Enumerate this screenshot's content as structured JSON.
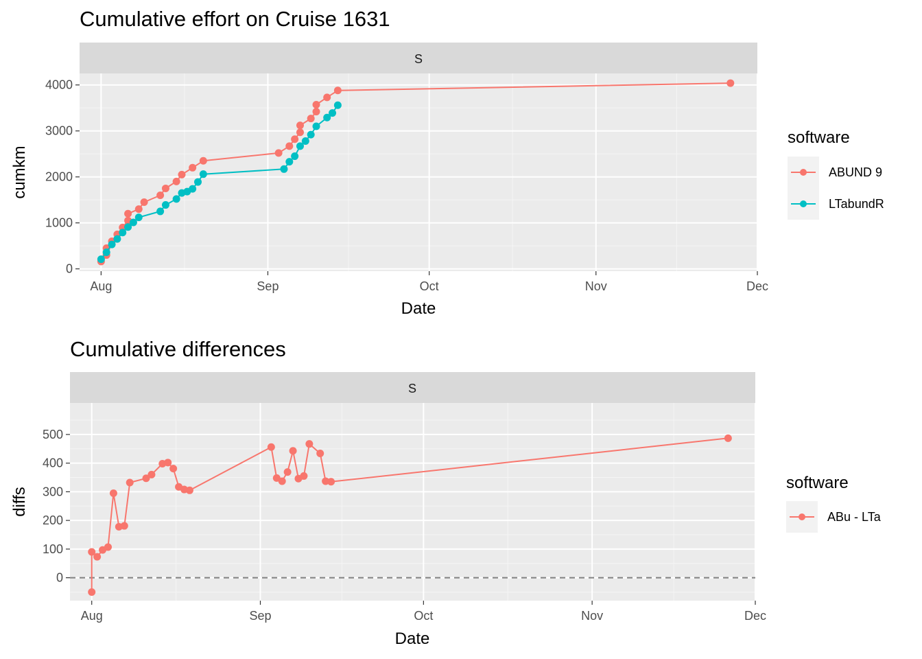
{
  "chart_data": [
    {
      "type": "line",
      "title": "Cumulative effort on Cruise 1631",
      "facet": "S",
      "xlabel": "Date",
      "ylabel": "cumkm",
      "x_type": "date",
      "xlim": [
        "2016-07-28",
        "2016-12-01"
      ],
      "ylim": [
        -50,
        4250
      ],
      "x_ticks": [
        {
          "date": "2016-08-01",
          "label": "Aug"
        },
        {
          "date": "2016-09-01",
          "label": "Sep"
        },
        {
          "date": "2016-10-01",
          "label": "Oct"
        },
        {
          "date": "2016-11-01",
          "label": "Nov"
        },
        {
          "date": "2016-12-01",
          "label": "Dec"
        }
      ],
      "y_ticks": [
        0,
        1000,
        2000,
        3000,
        4000
      ],
      "grid": true,
      "legend": {
        "title": "software",
        "position": "right"
      },
      "series": [
        {
          "name": "ABUND 9",
          "color": "#F8766D",
          "points": [
            [
              "2016-08-01",
              160
            ],
            [
              "2016-08-02",
              300
            ],
            [
              "2016-08-02",
              450
            ],
            [
              "2016-08-03",
              600
            ],
            [
              "2016-08-04",
              750
            ],
            [
              "2016-08-05",
              900
            ],
            [
              "2016-08-06",
              1050
            ],
            [
              "2016-08-06",
              1200
            ],
            [
              "2016-08-08",
              1300
            ],
            [
              "2016-08-09",
              1450
            ],
            [
              "2016-08-12",
              1600
            ],
            [
              "2016-08-13",
              1750
            ],
            [
              "2016-08-15",
              1900
            ],
            [
              "2016-08-16",
              2050
            ],
            [
              "2016-08-18",
              2200
            ],
            [
              "2016-08-20",
              2350
            ],
            [
              "2016-09-03",
              2520
            ],
            [
              "2016-09-05",
              2670
            ],
            [
              "2016-09-06",
              2820
            ],
            [
              "2016-09-07",
              2970
            ],
            [
              "2016-09-07",
              3120
            ],
            [
              "2016-09-09",
              3270
            ],
            [
              "2016-09-10",
              3420
            ],
            [
              "2016-09-10",
              3570
            ],
            [
              "2016-09-12",
              3730
            ],
            [
              "2016-09-14",
              3880
            ],
            [
              "2016-11-26",
              4040
            ]
          ]
        },
        {
          "name": "LTabundR",
          "color": "#00BFC4",
          "points": [
            [
              "2016-08-01",
              210
            ],
            [
              "2016-08-02",
              360
            ],
            [
              "2016-08-03",
              530
            ],
            [
              "2016-08-04",
              650
            ],
            [
              "2016-08-05",
              790
            ],
            [
              "2016-08-06",
              910
            ],
            [
              "2016-08-07",
              1010
            ],
            [
              "2016-08-08",
              1120
            ],
            [
              "2016-08-12",
              1250
            ],
            [
              "2016-08-13",
              1390
            ],
            [
              "2016-08-15",
              1520
            ],
            [
              "2016-08-16",
              1650
            ],
            [
              "2016-08-17",
              1680
            ],
            [
              "2016-08-18",
              1740
            ],
            [
              "2016-08-19",
              1890
            ],
            [
              "2016-08-20",
              2060
            ],
            [
              "2016-09-04",
              2170
            ],
            [
              "2016-09-05",
              2330
            ],
            [
              "2016-09-06",
              2450
            ],
            [
              "2016-09-07",
              2670
            ],
            [
              "2016-09-08",
              2780
            ],
            [
              "2016-09-09",
              2920
            ],
            [
              "2016-09-10",
              3100
            ],
            [
              "2016-09-12",
              3290
            ],
            [
              "2016-09-13",
              3390
            ],
            [
              "2016-09-14",
              3560
            ]
          ]
        }
      ]
    },
    {
      "type": "line",
      "title": "Cumulative differences",
      "facet": "S",
      "xlabel": "Date",
      "ylabel": "diffs",
      "x_type": "date",
      "xlim": [
        "2016-07-28",
        "2016-12-01"
      ],
      "ylim": [
        -80,
        610
      ],
      "x_ticks": [
        {
          "date": "2016-08-01",
          "label": "Aug"
        },
        {
          "date": "2016-09-01",
          "label": "Sep"
        },
        {
          "date": "2016-10-01",
          "label": "Oct"
        },
        {
          "date": "2016-11-01",
          "label": "Nov"
        },
        {
          "date": "2016-12-01",
          "label": "Dec"
        }
      ],
      "y_ticks": [
        0,
        100,
        200,
        300,
        400,
        500
      ],
      "grid": true,
      "reference_line": {
        "y": 0,
        "style": "dashed",
        "color": "#808080"
      },
      "legend": {
        "title": "software",
        "position": "right"
      },
      "series": [
        {
          "name": "ABu - LTa",
          "color": "#F8766D",
          "points": [
            [
              "2016-08-01",
              -50
            ],
            [
              "2016-08-01",
              90
            ],
            [
              "2016-08-02",
              73
            ],
            [
              "2016-08-03",
              97
            ],
            [
              "2016-08-04",
              107
            ],
            [
              "2016-08-05",
              295
            ],
            [
              "2016-08-06",
              178
            ],
            [
              "2016-08-07",
              181
            ],
            [
              "2016-08-08",
              332
            ],
            [
              "2016-08-11",
              347
            ],
            [
              "2016-08-12",
              360
            ],
            [
              "2016-08-14",
              398
            ],
            [
              "2016-08-15",
              402
            ],
            [
              "2016-08-16",
              381
            ],
            [
              "2016-08-17",
              317
            ],
            [
              "2016-08-18",
              308
            ],
            [
              "2016-08-19",
              305
            ],
            [
              "2016-09-03",
              456
            ],
            [
              "2016-09-04",
              348
            ],
            [
              "2016-09-05",
              337
            ],
            [
              "2016-09-06",
              369
            ],
            [
              "2016-09-07",
              443
            ],
            [
              "2016-09-08",
              346
            ],
            [
              "2016-09-09",
              355
            ],
            [
              "2016-09-10",
              467
            ],
            [
              "2016-09-12",
              434
            ],
            [
              "2016-09-13",
              337
            ],
            [
              "2016-09-14",
              335
            ],
            [
              "2016-11-26",
              487
            ]
          ]
        }
      ]
    }
  ]
}
